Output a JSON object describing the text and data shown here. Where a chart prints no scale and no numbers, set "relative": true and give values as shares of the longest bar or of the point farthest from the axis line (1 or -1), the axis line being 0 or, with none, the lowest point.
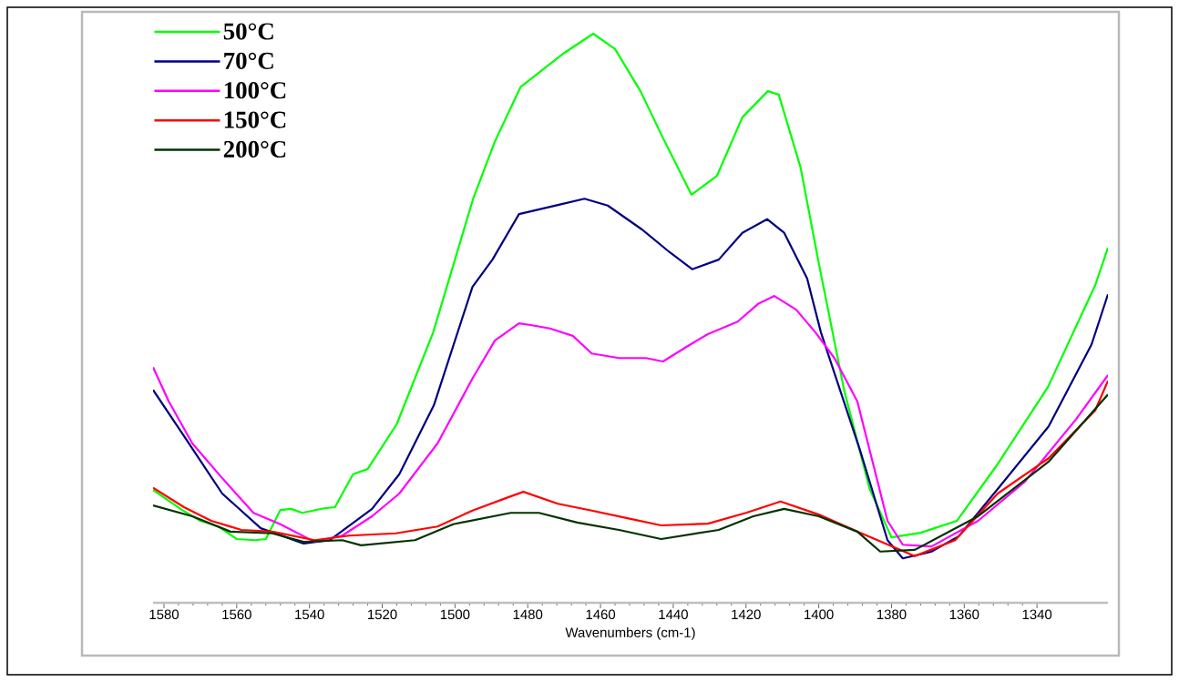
{
  "chart_data": {
    "type": "line",
    "relative": true,
    "xlabel": "Wavenumbers (cm-1)",
    "xlim": [
      1583,
      1320.5
    ],
    "xticks": [
      1580,
      1560,
      1540,
      1520,
      1500,
      1480,
      1460,
      1440,
      1420,
      1400,
      1380,
      1360,
      1340
    ],
    "legend": "top left",
    "series": [
      {
        "name": "50°C",
        "color": "#00ff00",
        "x": [
          1583,
          1575,
          1570,
          1565,
          1560,
          1555,
          1552,
          1548,
          1545,
          1542,
          1536,
          1533,
          1528,
          1524,
          1516,
          1506,
          1495,
          1489,
          1482,
          1470,
          1462,
          1456,
          1449,
          1443,
          1435,
          1428,
          1421,
          1414,
          1411,
          1405,
          1400,
          1393,
          1386,
          1380,
          1372,
          1362,
          1351,
          1337,
          1324,
          1320.5
        ],
        "values": [
          0.198,
          0.163,
          0.144,
          0.134,
          0.112,
          0.11,
          0.112,
          0.163,
          0.165,
          0.158,
          0.166,
          0.168,
          0.226,
          0.235,
          0.314,
          0.475,
          0.71,
          0.811,
          0.906,
          0.966,
          1.0,
          0.973,
          0.899,
          0.819,
          0.717,
          0.75,
          0.853,
          0.899,
          0.893,
          0.765,
          0.597,
          0.373,
          0.2,
          0.115,
          0.123,
          0.144,
          0.242,
          0.379,
          0.558,
          0.624
        ]
      },
      {
        "name": "70°C",
        "color": "#000080",
        "x": [
          1583,
          1574.5,
          1564,
          1553.4,
          1541.6,
          1534.4,
          1522.8,
          1515.3,
          1505.8,
          1495.2,
          1489.7,
          1482.4,
          1471.7,
          1464.4,
          1458,
          1448.6,
          1441,
          1434.8,
          1427.5,
          1421,
          1414.2,
          1409.5,
          1403.2,
          1399.4,
          1388.7,
          1381.1,
          1376.9,
          1369,
          1361.5,
          1350.8,
          1336.8,
          1325,
          1320.5
        ],
        "values": [
          0.374,
          0.293,
          0.192,
          0.131,
          0.104,
          0.11,
          0.165,
          0.226,
          0.347,
          0.555,
          0.603,
          0.683,
          0.699,
          0.71,
          0.698,
          0.656,
          0.616,
          0.586,
          0.603,
          0.65,
          0.674,
          0.65,
          0.57,
          0.475,
          0.269,
          0.11,
          0.078,
          0.09,
          0.117,
          0.2,
          0.31,
          0.454,
          0.542
        ]
      },
      {
        "name": "100°C",
        "color": "#ff00ff",
        "x": [
          1583,
          1578.7,
          1572.2,
          1564,
          1555.4,
          1548,
          1538.6,
          1531,
          1522.8,
          1515.3,
          1504.8,
          1495.2,
          1489,
          1482.4,
          1479.2,
          1473.9,
          1467.6,
          1462.4,
          1454.9,
          1447.5,
          1442.8,
          1436.8,
          1430.5,
          1422.3,
          1416.7,
          1412.2,
          1406.2,
          1400.9,
          1395.7,
          1389.4,
          1381.1,
          1376.9,
          1369,
          1356.2,
          1343.3,
          1329.2,
          1320.5
        ],
        "values": [
          0.414,
          0.354,
          0.28,
          0.219,
          0.158,
          0.138,
          0.107,
          0.118,
          0.152,
          0.192,
          0.28,
          0.394,
          0.461,
          0.491,
          0.488,
          0.482,
          0.469,
          0.438,
          0.43,
          0.43,
          0.424,
          0.448,
          0.472,
          0.494,
          0.525,
          0.539,
          0.515,
          0.475,
          0.43,
          0.354,
          0.144,
          0.102,
          0.099,
          0.144,
          0.213,
          0.323,
          0.4
        ]
      },
      {
        "name": "150°C",
        "color": "#ff0000",
        "x": [
          1583,
          1574.5,
          1567,
          1558.7,
          1550.2,
          1538.6,
          1529.1,
          1516.3,
          1504.8,
          1495.2,
          1484.7,
          1481.2,
          1471.7,
          1462.4,
          1452.9,
          1443.3,
          1430.5,
          1420,
          1410.5,
          1400,
          1389.4,
          1383.1,
          1373.6,
          1362.5,
          1350.8,
          1336.8,
          1324,
          1320.5
        ],
        "values": [
          0.202,
          0.168,
          0.144,
          0.128,
          0.125,
          0.11,
          0.118,
          0.122,
          0.134,
          0.162,
          0.187,
          0.195,
          0.174,
          0.162,
          0.149,
          0.136,
          0.139,
          0.158,
          0.178,
          0.155,
          0.125,
          null,
          0.082,
          0.11,
          0.192,
          0.254,
          0.338,
          0.39
        ]
      },
      {
        "name": "200°C",
        "color": "#003300",
        "x": [
          1583,
          1572.2,
          1561.7,
          1550.2,
          1541.6,
          1531,
          1525.8,
          1511,
          1500.5,
          1484.7,
          1476.9,
          1466.4,
          1454.9,
          1443.3,
          1427.5,
          1418,
          1409.5,
          1400,
          1389.4,
          1383.1,
          1373.6,
          1356.2,
          1336.8,
          1320.5
        ],
        "values": [
          0.171,
          0.152,
          0.125,
          0.122,
          0.107,
          0.11,
          0.101,
          0.11,
          0.138,
          0.158,
          0.158,
          0.141,
          0.128,
          0.112,
          0.128,
          0.152,
          0.165,
          0.152,
          0.125,
          0.09,
          0.093,
          0.152,
          0.248,
          0.366
        ]
      }
    ]
  }
}
